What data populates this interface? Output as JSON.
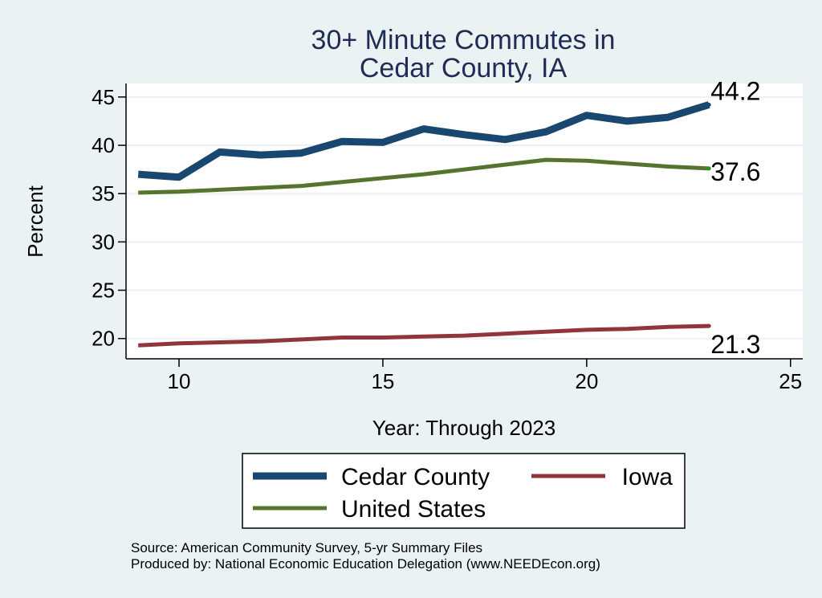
{
  "chart_data": {
    "type": "line",
    "title": [
      "30+ Minute Commutes in",
      "Cedar County, IA"
    ],
    "xlabel": "Year: Through 2023",
    "ylabel": "Percent",
    "xlim": [
      8.7,
      25.3
    ],
    "ylim": [
      17.9,
      46.4
    ],
    "xticks": [
      10,
      15,
      20,
      25
    ],
    "yticks": [
      20,
      25,
      30,
      35,
      40,
      45
    ],
    "grid": "horizontal",
    "x": [
      9,
      10,
      11,
      12,
      13,
      14,
      15,
      16,
      17,
      18,
      19,
      20,
      21,
      22,
      23
    ],
    "series": [
      {
        "name": "Cedar County",
        "color": "#1a476f",
        "values": [
          37.0,
          36.7,
          39.3,
          39.0,
          39.2,
          40.4,
          40.3,
          41.7,
          41.1,
          40.6,
          41.4,
          43.1,
          42.5,
          42.9,
          44.2
        ],
        "end_label": "44.2"
      },
      {
        "name": "Iowa",
        "color": "#90353b",
        "values": [
          19.3,
          19.5,
          19.6,
          19.7,
          19.9,
          20.1,
          20.1,
          20.2,
          20.3,
          20.5,
          20.7,
          20.9,
          21.0,
          21.2,
          21.3
        ],
        "end_label": "21.3"
      },
      {
        "name": "United States",
        "color": "#55752f",
        "values": [
          35.1,
          35.2,
          35.4,
          35.6,
          35.8,
          36.2,
          36.6,
          37.0,
          37.5,
          38.0,
          38.5,
          38.4,
          38.1,
          37.8,
          37.6
        ],
        "end_label": "37.6"
      }
    ],
    "legend": {
      "placement": "bottom",
      "entries": [
        "Cedar County",
        "Iowa",
        "United States"
      ]
    },
    "notes": [
      "Source: American Community Survey, 5-yr Summary Files",
      "Produced by: National Economic Education Delegation (www.NEEDEcon.org)"
    ]
  }
}
